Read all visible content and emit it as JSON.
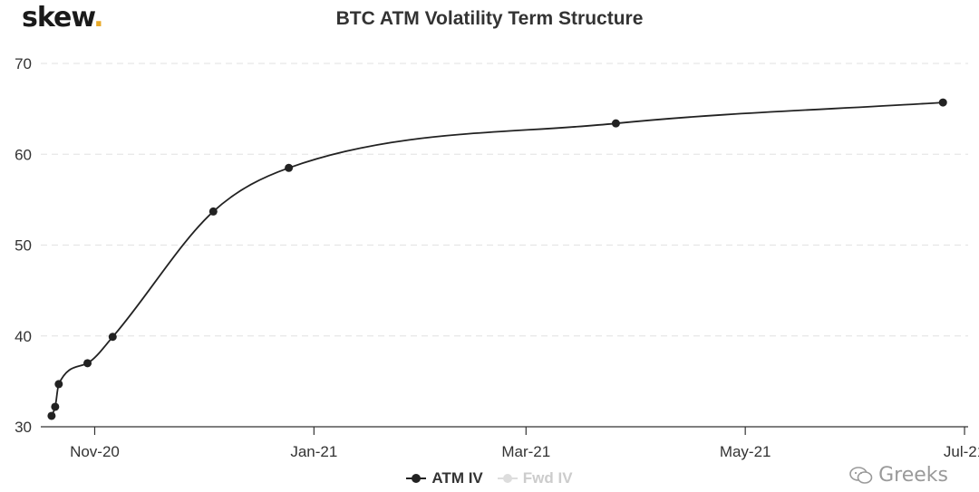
{
  "logo": {
    "text": "skew",
    "dot": "."
  },
  "watermark": {
    "text": "Greeks",
    "icon": "wechat-icon"
  },
  "colors": {
    "series": "#222222",
    "inactive": "#cccccc",
    "grid": "#e6e6e6",
    "axis": "#333333",
    "accent": "#e8a928"
  },
  "chart_data": {
    "type": "line",
    "title": "BTC ATM Volatility Term Structure",
    "xlabel": "",
    "ylabel": "",
    "x_ticks": [
      "Nov-20",
      "Jan-21",
      "Mar-21",
      "May-21",
      "Jul-21"
    ],
    "x_tick_dates": [
      "2020-11-01",
      "2021-01-01",
      "2021-03-01",
      "2021-05-01",
      "2021-07-01"
    ],
    "xlim": [
      "2020-10-17",
      "2021-07-02"
    ],
    "ylim": [
      30,
      70
    ],
    "y_ticks": [
      30,
      40,
      50,
      60,
      70
    ],
    "grid": true,
    "legend_position": "bottom-center",
    "series": [
      {
        "name": "ATM IV",
        "active": true,
        "points": [
          {
            "x": "2020-10-20",
            "y": 31.2
          },
          {
            "x": "2020-10-21",
            "y": 32.2
          },
          {
            "x": "2020-10-22",
            "y": 34.7
          },
          {
            "x": "2020-10-30",
            "y": 37.0
          },
          {
            "x": "2020-11-06",
            "y": 39.9
          },
          {
            "x": "2020-12-04",
            "y": 53.7
          },
          {
            "x": "2020-12-25",
            "y": 58.5
          },
          {
            "x": "2021-03-26",
            "y": 63.4
          },
          {
            "x": "2021-06-25",
            "y": 65.7
          }
        ]
      },
      {
        "name": "Fwd IV",
        "active": false,
        "points": []
      }
    ]
  }
}
